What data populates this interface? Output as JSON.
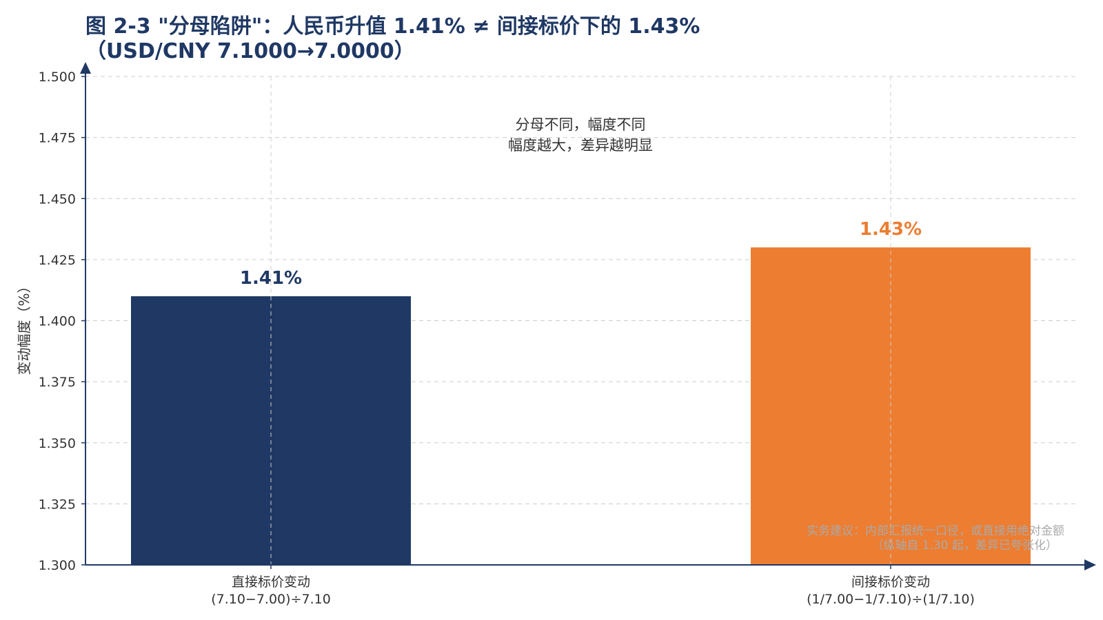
{
  "chart_data": {
    "type": "bar",
    "title_lines": [
      "图 2-3 \"分母陷阱\"：人民币升值 1.41% ≠ 间接标价下的 1.43%",
      "（USD/CNY 7.1000→7.0000）"
    ],
    "ylabel": "变动幅度（%）",
    "xlabel": "",
    "ylim": [
      1.3,
      1.5
    ],
    "yticks": [
      "1.300",
      "1.325",
      "1.350",
      "1.375",
      "1.400",
      "1.425",
      "1.450",
      "1.475",
      "1.500"
    ],
    "ytick_values": [
      1.3,
      1.325,
      1.35,
      1.375,
      1.4,
      1.425,
      1.45,
      1.475,
      1.5
    ],
    "grid": true,
    "categories": [
      {
        "line1": "直接标价变动",
        "line2": "(7.10−7.00)÷7.10"
      },
      {
        "line1": "间接标价变动",
        "line2": "(1/7.00−1/7.10)÷(1/7.10)"
      }
    ],
    "values": [
      1.41,
      1.43
    ],
    "data_labels": [
      "1.41%",
      "1.43%"
    ],
    "colors": [
      "#203864",
      "#ed7d31"
    ],
    "annotation": [
      "分母不同，幅度不同",
      "幅度越大，差异越明显"
    ],
    "note": [
      "实务建议：内部汇报统一口径，或直接用绝对金额",
      "（纵轴自 1.30 起，差异已夸张化）"
    ],
    "axis_color": "#1f3864",
    "title_color": "#1f3864"
  }
}
